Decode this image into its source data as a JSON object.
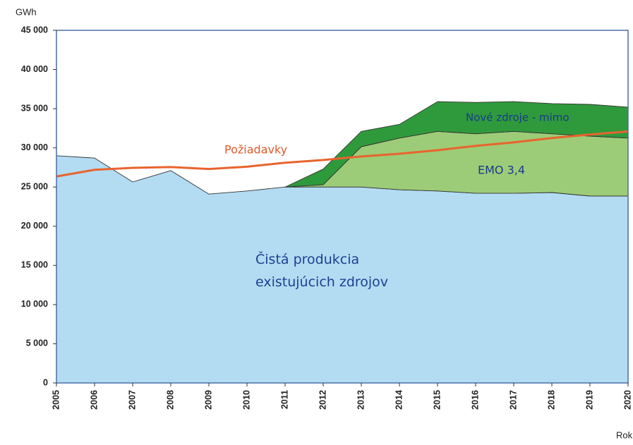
{
  "chart_data": {
    "type": "area",
    "stacked": true,
    "y_label": "GWh",
    "x_label": "Rok",
    "x": [
      2005,
      2006,
      2007,
      2008,
      2009,
      2010,
      2011,
      2012,
      2013,
      2014,
      2015,
      2016,
      2017,
      2018,
      2019,
      2020
    ],
    "xlim": [
      2005,
      2020
    ],
    "xticks": [
      2005,
      2006,
      2007,
      2008,
      2009,
      2010,
      2011,
      2012,
      2013,
      2014,
      2015,
      2016,
      2017,
      2018,
      2019,
      2020
    ],
    "ylim": [
      0,
      45000
    ],
    "yticks": [
      {
        "value": 0,
        "label": "0"
      },
      {
        "value": 5000,
        "label": "5 000"
      },
      {
        "value": 10000,
        "label": "10 000"
      },
      {
        "value": 15000,
        "label": "15 000"
      },
      {
        "value": 20000,
        "label": "20 000"
      },
      {
        "value": 25000,
        "label": "25 000"
      },
      {
        "value": 30000,
        "label": "30 000"
      },
      {
        "value": 35000,
        "label": "35 000"
      },
      {
        "value": 40000,
        "label": "40 000"
      },
      {
        "value": 45000,
        "label": "45 000"
      }
    ],
    "series": [
      {
        "name": "Čistá produkcia existujúcich zdrojov",
        "color": "#b3dcf3",
        "values": [
          29000,
          28700,
          25650,
          27100,
          24100,
          24500,
          25000,
          25000,
          25000,
          24650,
          24500,
          24200,
          24200,
          24300,
          23850,
          23850
        ]
      },
      {
        "name": "EMO 3,4",
        "color": "#9dcc78",
        "values": [
          null,
          null,
          null,
          null,
          null,
          null,
          0,
          300,
          5150,
          6600,
          7600,
          7600,
          7900,
          7500,
          7650,
          7400
        ]
      },
      {
        "name": "Nové zdroje - mimo",
        "color": "#2f9a3c",
        "values": [
          null,
          null,
          null,
          null,
          null,
          null,
          0,
          2000,
          1950,
          1750,
          3800,
          4000,
          3800,
          3850,
          4050,
          3950
        ]
      },
      {
        "name": "Požiadavky",
        "color": "#e8642e",
        "type": "line",
        "values": [
          26350,
          27200,
          27450,
          27550,
          27300,
          27600,
          28100,
          28450,
          28900,
          29250,
          29700,
          30250,
          30700,
          31250,
          31700,
          32100
        ]
      }
    ]
  }
}
